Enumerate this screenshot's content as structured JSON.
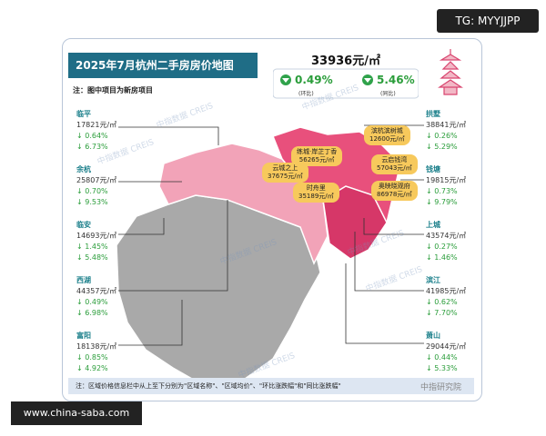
{
  "watermark_top": "TG: MYYJJPP",
  "watermark_bottom": "www.china-saba.com",
  "header": {
    "title": "2025年7月杭州二手房房价地图",
    "note": "注：图中项目为新房项目"
  },
  "summary": {
    "price": "33936元/㎡",
    "mom": "0.49%",
    "mom_label": "(环比)",
    "yoy": "5.46%",
    "yoy_label": "(同比)"
  },
  "districts_left": [
    {
      "name": "临平",
      "price": "17821元/㎡",
      "mom": "↓ 0.64%",
      "yoy": "↓ 6.73%"
    },
    {
      "name": "余杭",
      "price": "25807元/㎡",
      "mom": "↓ 0.70%",
      "yoy": "↓ 9.53%"
    },
    {
      "name": "临安",
      "price": "14693元/㎡",
      "mom": "↓ 1.45%",
      "yoy": "↓ 5.48%"
    },
    {
      "name": "西湖",
      "price": "44357元/㎡",
      "mom": "↓ 0.49%",
      "yoy": "↓ 6.98%"
    },
    {
      "name": "富阳",
      "price": "18138元/㎡",
      "mom": "↓ 0.85%",
      "yoy": "↓ 4.92%"
    }
  ],
  "districts_right": [
    {
      "name": "拱墅",
      "price": "38841元/㎡",
      "mom": "↓ 0.26%",
      "yoy": "↓ 5.29%"
    },
    {
      "name": "钱塘",
      "price": "19815元/㎡",
      "mom": "↓ 0.73%",
      "yoy": "↓ 9.79%"
    },
    {
      "name": "上城",
      "price": "43574元/㎡",
      "mom": "↓ 0.27%",
      "yoy": "↓ 1.46%"
    },
    {
      "name": "滨江",
      "price": "41985元/㎡",
      "mom": "↓ 0.62%",
      "yoy": "↓ 7.70%"
    },
    {
      "name": "萧山",
      "price": "29044元/㎡",
      "mom": "↓ 0.44%",
      "yoy": "↓ 5.33%"
    }
  ],
  "projects": [
    {
      "name": "滨杭滨树城",
      "price": "12600元/㎡"
    },
    {
      "name": "练城·岸芷丁香",
      "price": "56265元/㎡"
    },
    {
      "name": "云城之上",
      "price": "37675元/㎡"
    },
    {
      "name": "时舟里",
      "price": "35189元/㎡"
    },
    {
      "name": "云启钱湾",
      "price": "57043元/㎡"
    },
    {
      "name": "奥映晓观府",
      "price": "86978元/㎡"
    }
  ],
  "map_watermark": "中指数据 CREIS",
  "source_watermark": "中指研究院",
  "footer": "注：区域价格信息栏中从上至下分别为\"区域名称\"、\"区域均价\"、\"环比涨跌幅\"和\"同比涨跌幅\""
}
